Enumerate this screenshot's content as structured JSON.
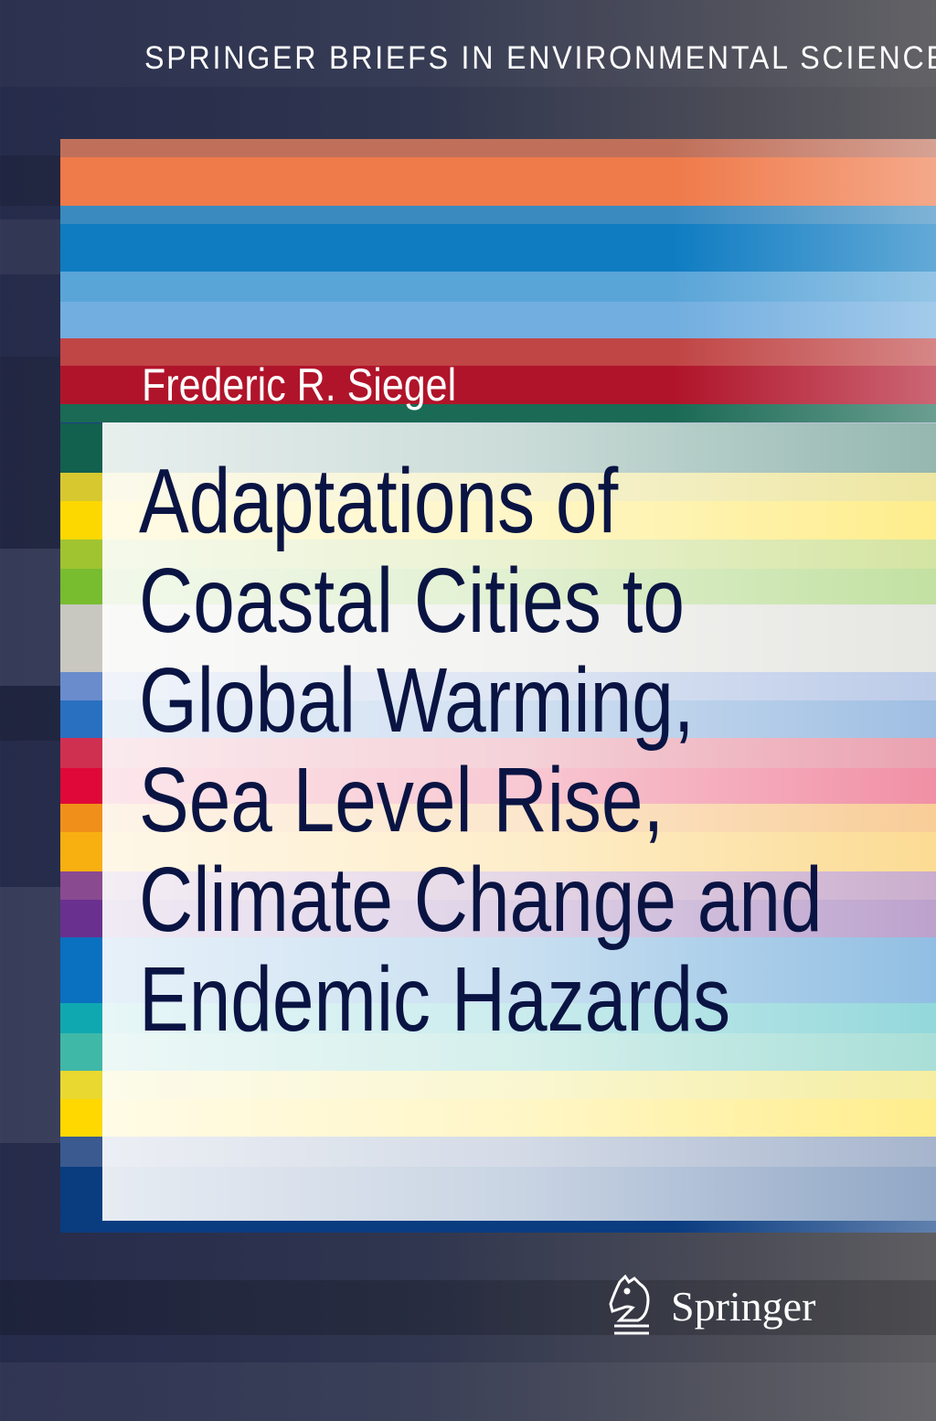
{
  "series": "SPRINGER BRIEFS IN ENVIRONMENTAL SCIENCE",
  "author": "Frederic R. Siegel",
  "title_lines": [
    "Adaptations of",
    "Coastal Cities to",
    "Global Warming,",
    "Sea Level Rise,",
    "Climate Change and",
    "Endemic Hazards"
  ],
  "publisher": "Springer",
  "colors": {
    "title_text": "#0a1443",
    "top_stripes": [
      "#c0705a",
      "#ef7a4a",
      "#3a8ac0",
      "#0f7cc2",
      "#5aa5d8",
      "#72aee0",
      "#c04545",
      "#b0142a",
      "#1a6a55"
    ],
    "side_stripes": [
      "#12604e",
      "#d8c830",
      "#fcd800",
      "#a0c430",
      "#78bc30",
      "#c8c8c0",
      "#6a8ccc",
      "#2a70c0",
      "#d03050",
      "#e00838",
      "#f0901a",
      "#f8b010",
      "#8a4a90",
      "#6a3090",
      "#0a70c0",
      "#10a8b0",
      "#40b8a8",
      "#e8d830",
      "#ffd800",
      "#3a5a90",
      "#0a3c80"
    ]
  }
}
